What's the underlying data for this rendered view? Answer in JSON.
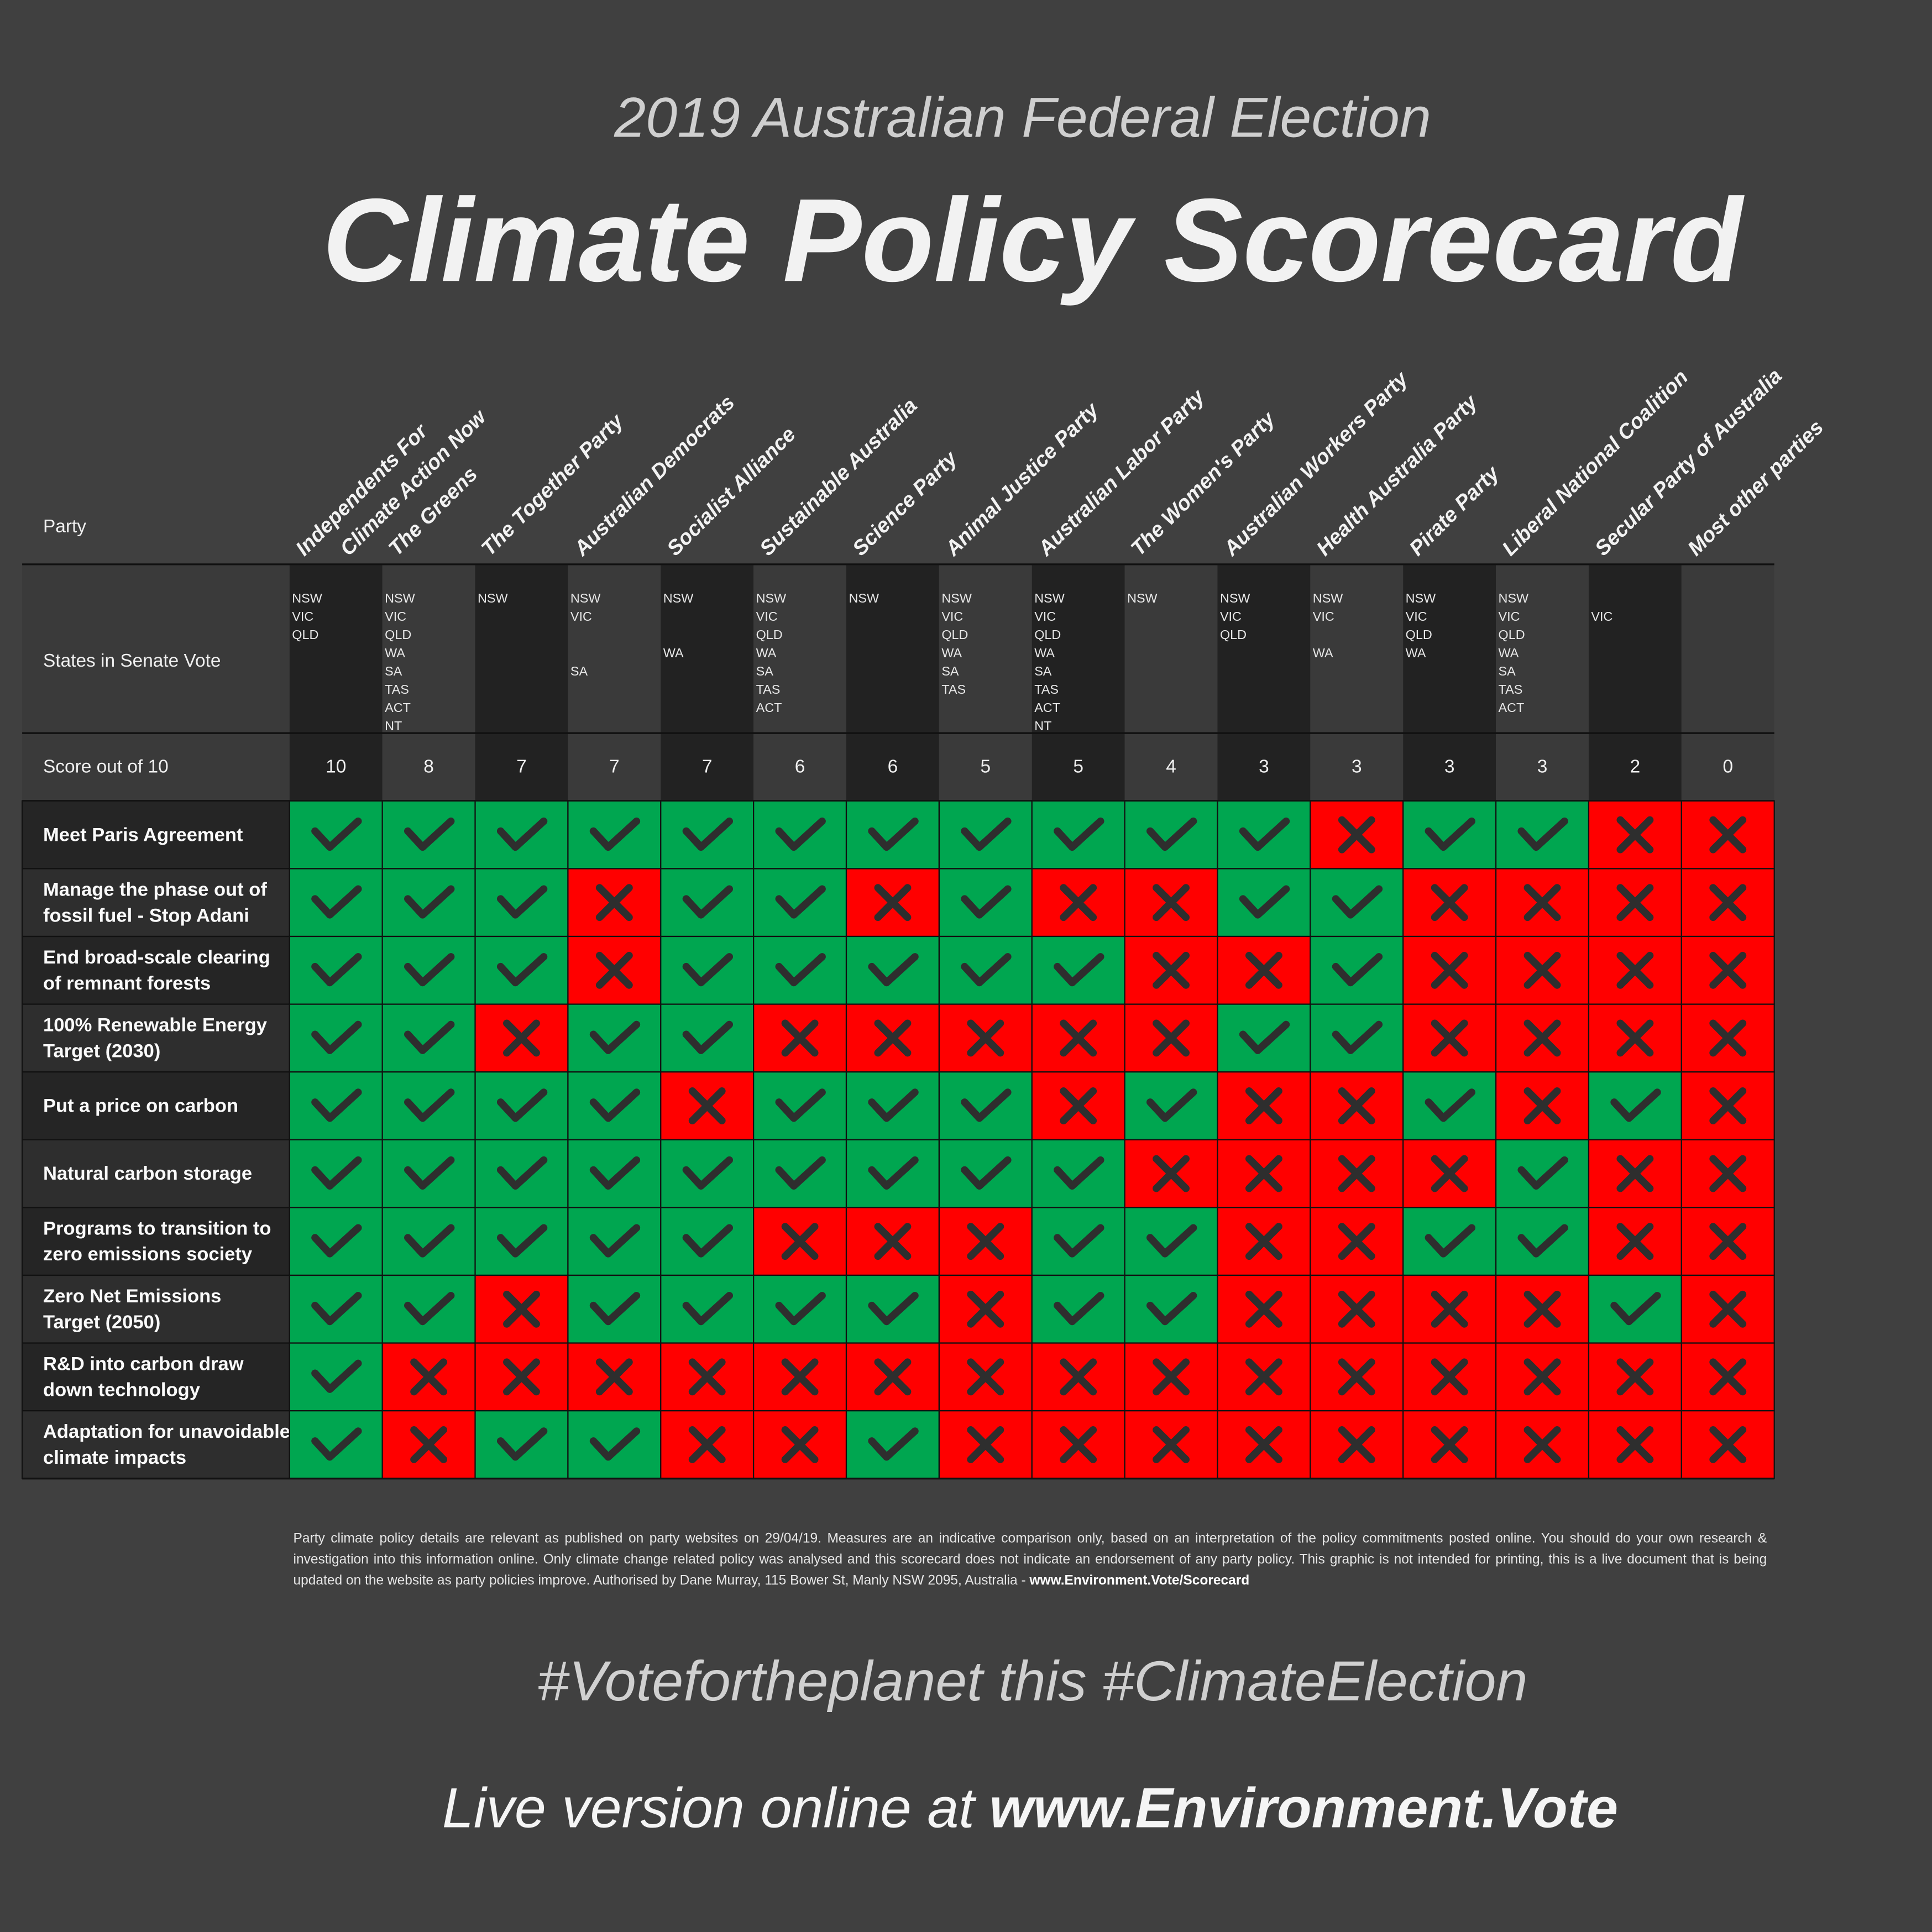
{
  "header": {
    "subtitle": "2019 Australian Federal Election",
    "title": "Climate Policy Scorecard"
  },
  "table": {
    "party_label": "Party",
    "states_label": "States in Senate Vote",
    "score_label": "Score out of 10",
    "parties": [
      {
        "name": [
          "Independents For",
          "Climate Action Now"
        ],
        "states": [
          "NSW",
          "VIC",
          "QLD"
        ],
        "score": 10
      },
      {
        "name": [
          "The Greens"
        ],
        "states": [
          "NSW",
          "VIC",
          "QLD",
          "WA",
          "SA",
          "TAS",
          "ACT",
          "NT"
        ],
        "score": 8
      },
      {
        "name": [
          "The Together Party"
        ],
        "states": [
          "NSW"
        ],
        "score": 7
      },
      {
        "name": [
          "Australian Democrats"
        ],
        "states": [
          "NSW",
          "VIC",
          null,
          null,
          "SA"
        ],
        "score": 7
      },
      {
        "name": [
          "Socialist Alliance"
        ],
        "states": [
          "NSW",
          null,
          null,
          "WA"
        ],
        "score": 7
      },
      {
        "name": [
          "Sustainable Australia"
        ],
        "states": [
          "NSW",
          "VIC",
          "QLD",
          "WA",
          "SA",
          "TAS",
          "ACT"
        ],
        "score": 6
      },
      {
        "name": [
          "Science Party"
        ],
        "states": [
          "NSW"
        ],
        "score": 6
      },
      {
        "name": [
          "Animal Justice Party"
        ],
        "states": [
          "NSW",
          "VIC",
          "QLD",
          "WA",
          "SA",
          "TAS"
        ],
        "score": 5
      },
      {
        "name": [
          "Australian Labor Party"
        ],
        "states": [
          "NSW",
          "VIC",
          "QLD",
          "WA",
          "SA",
          "TAS",
          "ACT",
          "NT"
        ],
        "score": 5
      },
      {
        "name": [
          "The Women's Party"
        ],
        "states": [
          "NSW"
        ],
        "score": 4
      },
      {
        "name": [
          "Australian Workers Party"
        ],
        "states": [
          "NSW",
          "VIC",
          "QLD"
        ],
        "score": 3
      },
      {
        "name": [
          "Health Australia Party"
        ],
        "states": [
          "NSW",
          "VIC",
          null,
          "WA"
        ],
        "score": 3
      },
      {
        "name": [
          "Pirate Party"
        ],
        "states": [
          "NSW",
          "VIC",
          "QLD",
          "WA"
        ],
        "score": 3
      },
      {
        "name": [
          "Liberal National Coalition"
        ],
        "states": [
          "NSW",
          "VIC",
          "QLD",
          "WA",
          "SA",
          "TAS",
          "ACT"
        ],
        "score": 3
      },
      {
        "name": [
          "Secular Party of Australia"
        ],
        "states": [
          null,
          "VIC"
        ],
        "score": 2
      },
      {
        "name": [
          "Most other parties"
        ],
        "states": [],
        "score": 0
      }
    ],
    "rows": [
      {
        "label": [
          "Meet Paris Agreement"
        ],
        "values": [
          true,
          true,
          true,
          true,
          true,
          true,
          true,
          true,
          true,
          true,
          true,
          false,
          true,
          true,
          false,
          false
        ]
      },
      {
        "label": [
          "Manage the phase out of",
          "fossil fuel - Stop Adani"
        ],
        "values": [
          true,
          true,
          true,
          false,
          true,
          true,
          false,
          true,
          false,
          false,
          true,
          true,
          false,
          false,
          false,
          false
        ]
      },
      {
        "label": [
          "End broad-scale clearing",
          "of remnant forests"
        ],
        "values": [
          true,
          true,
          true,
          false,
          true,
          true,
          true,
          true,
          true,
          false,
          false,
          true,
          false,
          false,
          false,
          false
        ]
      },
      {
        "label": [
          "100% Renewable Energy",
          "Target (2030)"
        ],
        "values": [
          true,
          true,
          false,
          true,
          true,
          false,
          false,
          false,
          false,
          false,
          true,
          true,
          false,
          false,
          false,
          false
        ]
      },
      {
        "label": [
          "Put a price on carbon"
        ],
        "values": [
          true,
          true,
          true,
          true,
          false,
          true,
          true,
          true,
          false,
          true,
          false,
          false,
          true,
          false,
          true,
          false
        ]
      },
      {
        "label": [
          "Natural carbon storage"
        ],
        "values": [
          true,
          true,
          true,
          true,
          true,
          true,
          true,
          true,
          true,
          false,
          false,
          false,
          false,
          true,
          false,
          false
        ]
      },
      {
        "label": [
          "Programs to transition to",
          "zero emissions society"
        ],
        "values": [
          true,
          true,
          true,
          true,
          true,
          false,
          false,
          false,
          true,
          true,
          false,
          false,
          true,
          true,
          false,
          false
        ]
      },
      {
        "label": [
          "Zero Net Emissions",
          "Target (2050)"
        ],
        "values": [
          true,
          true,
          false,
          true,
          true,
          true,
          true,
          false,
          true,
          true,
          false,
          false,
          false,
          false,
          true,
          false
        ]
      },
      {
        "label": [
          "R&D into carbon draw",
          "down technology"
        ],
        "values": [
          true,
          false,
          false,
          false,
          false,
          false,
          false,
          false,
          false,
          false,
          false,
          false,
          false,
          false,
          false,
          false
        ]
      },
      {
        "label": [
          "Adaptation for unavoidable",
          "climate impacts"
        ],
        "values": [
          true,
          false,
          true,
          true,
          false,
          false,
          true,
          false,
          false,
          false,
          false,
          false,
          false,
          false,
          false,
          false
        ]
      }
    ]
  },
  "footer": {
    "disclaimer": "Party climate policy details are relevant as published on party websites on 29/04/19. Measures are an indicative comparison only, based on an interpretation of the policy commitments posted online. You should do your own research & investigation into this information online. Only climate change related policy was analysed and this scorecard does not indicate an endorsement of any party policy. This graphic is not intended for printing, this is a live document that is being updated on the website as party policies improve. Authorised by Dane Murray, 115 Bower St, Manly NSW 2095, Australia -",
    "url": "www.Environment.Vote/Scorecard",
    "hashtag": "#Votefortheplanet this #ClimateElection",
    "live_prefix": "Live version online at",
    "live_url": "www.Environment.Vote"
  }
}
